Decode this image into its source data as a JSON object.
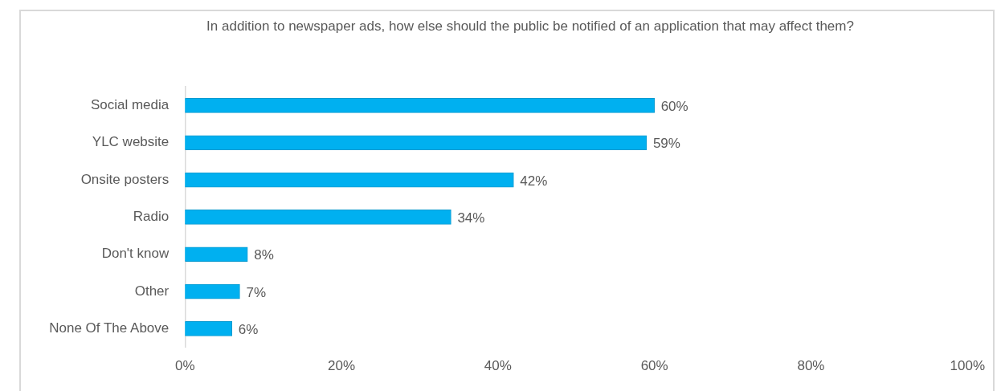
{
  "chart_data": {
    "type": "bar",
    "orientation": "horizontal",
    "title": "In addition to newspaper ads, how else should the public be notified of an application that may affect them?",
    "categories": [
      "Social media",
      "YLC website",
      "Onsite posters",
      "Radio",
      "Don't know",
      "Other",
      "None Of The Above"
    ],
    "values": [
      60,
      59,
      42,
      34,
      8,
      7,
      6
    ],
    "value_labels": [
      "60%",
      "59%",
      "42%",
      "34%",
      "8%",
      "7%",
      "6%"
    ],
    "color": "#00b0f0",
    "xlim": [
      0,
      100
    ],
    "xticks": [
      {
        "value": 0,
        "label": "0%"
      },
      {
        "value": 20,
        "label": "20%"
      },
      {
        "value": 40,
        "label": "40%"
      },
      {
        "value": 60,
        "label": "60%"
      },
      {
        "value": 80,
        "label": "80%"
      },
      {
        "value": 100,
        "label": "100%"
      }
    ],
    "grid": false,
    "legend": false
  }
}
